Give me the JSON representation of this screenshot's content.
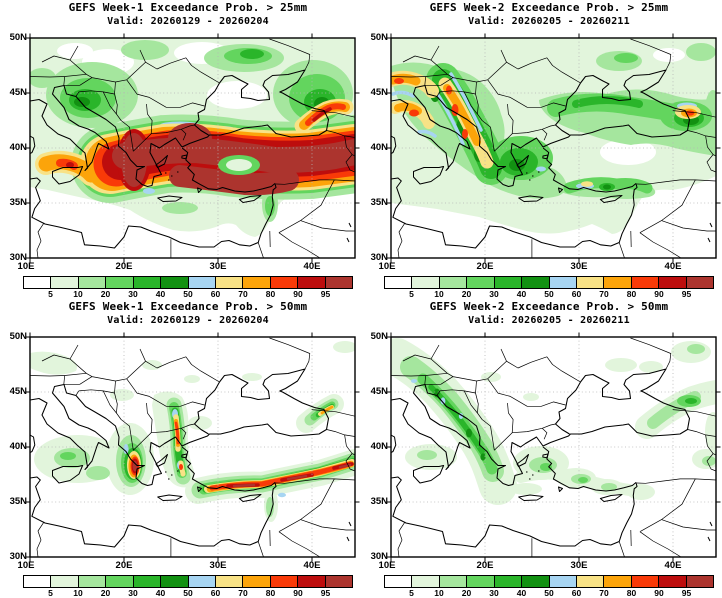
{
  "panels": [
    {
      "title": "GEFS Week-1 Exceedance Prob. > 25mm",
      "valid": "Valid: 20260129 - 20260204"
    },
    {
      "title": "GEFS Week-2 Exceedance Prob. > 25mm",
      "valid": "Valid: 20260205 - 20260211"
    },
    {
      "title": "GEFS Week-1 Exceedance Prob. > 50mm",
      "valid": "Valid: 20260129 - 20260204"
    },
    {
      "title": "GEFS Week-2 Exceedance Prob. > 50mm",
      "valid": "Valid: 20260205 - 20260211"
    }
  ],
  "axes": {
    "lat_ticks": [
      "50N",
      "45N",
      "40N",
      "35N",
      "30N"
    ],
    "lon_ticks": [
      "10E",
      "20E",
      "30E",
      "40E"
    ]
  },
  "colorbar": {
    "tick_labels": [
      "5",
      "10",
      "20",
      "30",
      "40",
      "50",
      "60",
      "70",
      "80",
      "90",
      "95"
    ],
    "colors": [
      "#ffffff",
      "#e2f5dc",
      "#a5e69e",
      "#63d55e",
      "#2ab52a",
      "#129112",
      "#a7d5f2",
      "#f8e286",
      "#fca40a",
      "#f93a08",
      "#bd0d0d",
      "#ac342e"
    ]
  },
  "chart_data": {
    "type": "heatmap",
    "subtype": "probability-map-grid",
    "region": "Central/Eastern Mediterranean, Balkans, Anatolia, Black Sea",
    "lon_range": [
      "10E",
      "45E"
    ],
    "lat_range": [
      "30N",
      "50N"
    ],
    "grid": "dotted graticule every 5 deg lat / 10 deg lon",
    "units": "% probability",
    "levels": [
      5,
      10,
      20,
      30,
      40,
      50,
      60,
      70,
      80,
      90,
      95
    ],
    "palette": [
      "#ffffff",
      "#e2f5dc",
      "#a5e69e",
      "#63d55e",
      "#2ab52a",
      "#129112",
      "#a7d5f2",
      "#f8e286",
      "#fca40a",
      "#f93a08",
      "#bd0d0d",
      "#ac342e"
    ],
    "maps": [
      {
        "title": "GEFS Week-1 Exceedance Prob. > 25mm",
        "valid": "Valid: 20260129 - 20260204",
        "week": 1,
        "threshold_mm": 25,
        "highlights": [
          {
            "area": "Western Greece / Ionian coast",
            "prob": ">95"
          },
          {
            "area": "Aegean Sea, western and southern Turkey broad band",
            "prob": ">95"
          },
          {
            "area": "Band extending east along 36-40N to map edge",
            "prob": "90->95"
          },
          {
            "area": "Sicily / southern Italy",
            "prob": "70-90 with small >90 core"
          },
          {
            "area": "NE Turkey / Caucasus Black Sea coast",
            "prob": "80->95 streak"
          },
          {
            "area": "Balkans and Black Sea surroundings",
            "prob": "10-40 greens"
          }
        ]
      },
      {
        "title": "GEFS Week-2 Exceedance Prob. > 25mm",
        "valid": "Valid: 20260205 - 20260211",
        "week": 2,
        "threshold_mm": 25,
        "highlights": [
          {
            "area": "Apennines (Italy) streaks",
            "prob": "70-90 cores with 50-60 blue fringes"
          },
          {
            "area": "Dinaric Alps / Adriatic coast diagonal band",
            "prob": "70-90 core"
          },
          {
            "area": "Caucasus coast spot",
            "prob": "70-90"
          },
          {
            "area": "Most of Balkans, Aegean, northern Turkey",
            "prob": "10-40 greens"
          },
          {
            "area": "SW Turkey coast spot",
            "prob": "50-70"
          }
        ]
      },
      {
        "title": "GEFS Week-1 Exceedance Prob. > 50mm",
        "valid": "Valid: 20260129 - 20260204",
        "week": 1,
        "threshold_mm": 50,
        "highlights": [
          {
            "area": "Western Greece lobe",
            "prob": ">95 core"
          },
          {
            "area": "NE Aegean / west Turkey coast lobe",
            "prob": "80-95"
          },
          {
            "area": "Southern Turkey coastal band to map edge",
            "prob": "90->95 segments"
          },
          {
            "area": "Caucasus coast streak",
            "prob": "70-80"
          },
          {
            "area": "Elsewhere",
            "prob": "mostly <5 white"
          }
        ]
      },
      {
        "title": "GEFS Week-2 Exceedance Prob. > 50mm",
        "valid": "Valid: 20260205 - 20260211",
        "week": 2,
        "threshold_mm": 50,
        "highlights": [
          {
            "area": "Dinaric / Adriatic coast band into western Greece",
            "prob": "20-40 core, tiny 50-60 blue dots"
          },
          {
            "area": "Southern Turkey coast and Aegean",
            "prob": "5-20 patches"
          },
          {
            "area": "Caucasus / NE Black Sea",
            "prob": "10-30"
          },
          {
            "area": "Elsewhere",
            "prob": "mostly <5 white"
          }
        ]
      }
    ]
  }
}
